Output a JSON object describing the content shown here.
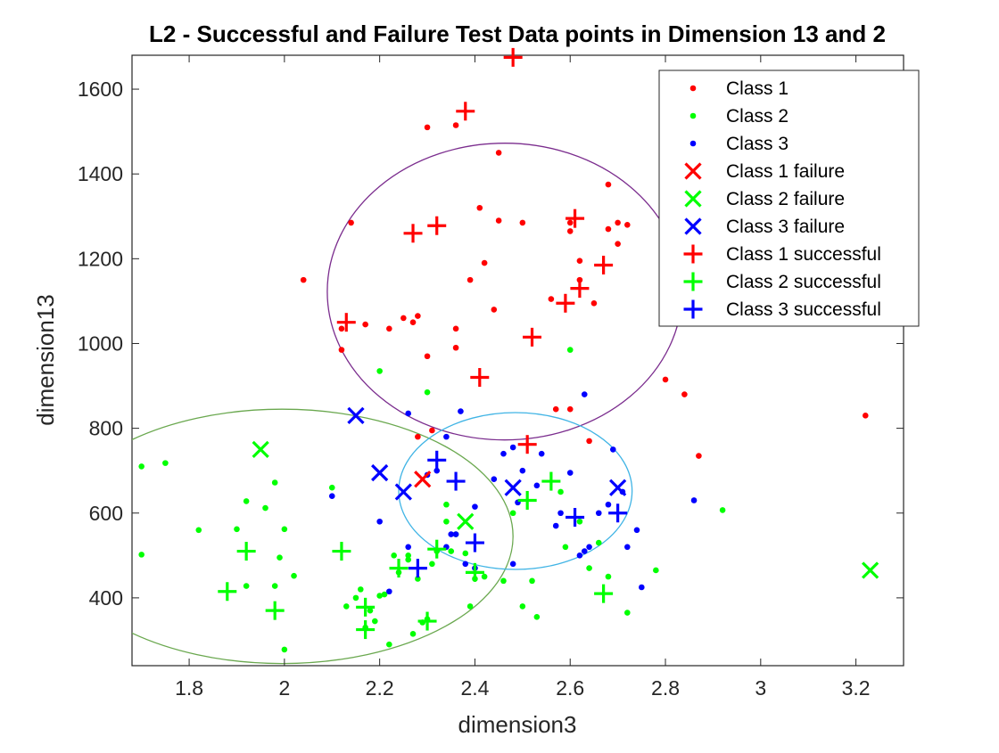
{
  "chart_data": {
    "type": "scatter",
    "title": "L2 - Successful and Failure Test Data points in Dimension 13 and 2",
    "xlabel": "dimension3",
    "ylabel": "dimension13",
    "xlim": [
      1.68,
      3.3
    ],
    "ylim": [
      240,
      1680
    ],
    "xticks": [
      1.8,
      2,
      2.2,
      2.4,
      2.6,
      2.8,
      3,
      3.2
    ],
    "xtick_labels": [
      "1.8",
      "2",
      "2.2",
      "2.4",
      "2.6",
      "2.8",
      "3",
      "3.2"
    ],
    "yticks": [
      400,
      600,
      800,
      1000,
      1200,
      1400,
      1600
    ],
    "ytick_labels": [
      "400",
      "600",
      "800",
      "1000",
      "1200",
      "1400",
      "1600"
    ],
    "grid": false,
    "legend_position": "top-right",
    "colors": {
      "class1": "#ff0000",
      "class2": "#00ff00",
      "class3": "#0000ff"
    },
    "series": [
      {
        "name": "Class 1",
        "marker": "dot",
        "color": "#ff0000",
        "points": [
          [
            2.3,
            1510
          ],
          [
            2.36,
            1515
          ],
          [
            2.45,
            1450
          ],
          [
            2.04,
            1150
          ],
          [
            2.14,
            1285
          ],
          [
            2.12,
            985
          ],
          [
            2.12,
            1035
          ],
          [
            2.17,
            1045
          ],
          [
            2.22,
            1035
          ],
          [
            2.25,
            1060
          ],
          [
            2.27,
            1050
          ],
          [
            2.28,
            1065
          ],
          [
            2.3,
            970
          ],
          [
            2.36,
            1035
          ],
          [
            2.36,
            990
          ],
          [
            2.39,
            1150
          ],
          [
            2.41,
            1320
          ],
          [
            2.42,
            1190
          ],
          [
            2.44,
            1080
          ],
          [
            2.45,
            1290
          ],
          [
            2.5,
            1285
          ],
          [
            2.56,
            1105
          ],
          [
            2.6,
            1285
          ],
          [
            2.6,
            1265
          ],
          [
            2.62,
            1195
          ],
          [
            2.62,
            1150
          ],
          [
            2.65,
            1095
          ],
          [
            2.68,
            1375
          ],
          [
            2.68,
            1270
          ],
          [
            2.7,
            1285
          ],
          [
            2.7,
            1235
          ],
          [
            2.72,
            1280
          ],
          [
            2.8,
            915
          ],
          [
            2.84,
            880
          ],
          [
            2.87,
            735
          ],
          [
            3.22,
            830
          ],
          [
            2.31,
            795
          ],
          [
            2.28,
            780
          ],
          [
            2.57,
            845
          ],
          [
            2.6,
            845
          ],
          [
            2.64,
            770
          ]
        ]
      },
      {
        "name": "Class 2",
        "marker": "dot",
        "color": "#00ff00",
        "points": [
          [
            1.7,
            710
          ],
          [
            1.75,
            718
          ],
          [
            1.7,
            502
          ],
          [
            1.82,
            560
          ],
          [
            1.9,
            562
          ],
          [
            1.92,
            628
          ],
          [
            1.92,
            428
          ],
          [
            1.96,
            612
          ],
          [
            1.98,
            672
          ],
          [
            1.98,
            428
          ],
          [
            1.99,
            495
          ],
          [
            2.0,
            562
          ],
          [
            2.02,
            452
          ],
          [
            2.0,
            278
          ],
          [
            2.1,
            660
          ],
          [
            2.13,
            380
          ],
          [
            2.15,
            400
          ],
          [
            2.16,
            420
          ],
          [
            2.17,
            330
          ],
          [
            2.18,
            370
          ],
          [
            2.19,
            345
          ],
          [
            2.2,
            405
          ],
          [
            2.21,
            408
          ],
          [
            2.22,
            290
          ],
          [
            2.23,
            500
          ],
          [
            2.24,
            460
          ],
          [
            2.26,
            490
          ],
          [
            2.26,
            500
          ],
          [
            2.27,
            315
          ],
          [
            2.28,
            445
          ],
          [
            2.29,
            342
          ],
          [
            2.3,
            350
          ],
          [
            2.31,
            480
          ],
          [
            2.32,
            510
          ],
          [
            2.34,
            580
          ],
          [
            2.35,
            510
          ],
          [
            2.36,
            550
          ],
          [
            2.38,
            505
          ],
          [
            2.39,
            380
          ],
          [
            2.4,
            445
          ],
          [
            2.42,
            450
          ],
          [
            2.46,
            440
          ],
          [
            2.5,
            380
          ],
          [
            2.52,
            440
          ],
          [
            2.53,
            355
          ],
          [
            2.59,
            520
          ],
          [
            2.6,
            985
          ],
          [
            2.62,
            580
          ],
          [
            2.64,
            470
          ],
          [
            2.68,
            450
          ],
          [
            2.72,
            365
          ],
          [
            2.78,
            465
          ],
          [
            2.92,
            607
          ],
          [
            2.2,
            935
          ],
          [
            2.3,
            885
          ],
          [
            2.48,
            600
          ],
          [
            2.58,
            650
          ],
          [
            2.66,
            530
          ],
          [
            2.34,
            620
          ]
        ]
      },
      {
        "name": "Class 3",
        "marker": "dot",
        "color": "#0000ff",
        "points": [
          [
            2.1,
            640
          ],
          [
            2.2,
            580
          ],
          [
            2.22,
            415
          ],
          [
            2.26,
            835
          ],
          [
            2.26,
            520
          ],
          [
            2.3,
            690
          ],
          [
            2.32,
            700
          ],
          [
            2.34,
            780
          ],
          [
            2.35,
            550
          ],
          [
            2.36,
            550
          ],
          [
            2.37,
            840
          ],
          [
            2.38,
            480
          ],
          [
            2.4,
            470
          ],
          [
            2.4,
            615
          ],
          [
            2.44,
            680
          ],
          [
            2.46,
            740
          ],
          [
            2.48,
            480
          ],
          [
            2.49,
            625
          ],
          [
            2.5,
            700
          ],
          [
            2.53,
            665
          ],
          [
            2.54,
            740
          ],
          [
            2.57,
            570
          ],
          [
            2.58,
            600
          ],
          [
            2.6,
            695
          ],
          [
            2.62,
            500
          ],
          [
            2.63,
            880
          ],
          [
            2.63,
            510
          ],
          [
            2.64,
            520
          ],
          [
            2.66,
            600
          ],
          [
            2.68,
            620
          ],
          [
            2.69,
            750
          ],
          [
            2.71,
            650
          ],
          [
            2.72,
            520
          ],
          [
            2.74,
            560
          ],
          [
            2.75,
            425
          ],
          [
            2.86,
            630
          ],
          [
            2.48,
            755
          ],
          [
            2.34,
            520
          ]
        ]
      },
      {
        "name": "Class 1 failure",
        "marker": "x",
        "color": "#ff0000",
        "points": [
          [
            2.29,
            680
          ]
        ]
      },
      {
        "name": "Class 2 failure",
        "marker": "x",
        "color": "#00ff00",
        "points": [
          [
            1.95,
            750
          ],
          [
            2.38,
            580
          ],
          [
            3.23,
            465
          ]
        ]
      },
      {
        "name": "Class 3 failure",
        "marker": "x",
        "color": "#0000ff",
        "points": [
          [
            2.15,
            830
          ],
          [
            2.2,
            695
          ],
          [
            2.25,
            650
          ],
          [
            2.48,
            660
          ],
          [
            2.7,
            660
          ]
        ]
      },
      {
        "name": "Class 1 successful",
        "marker": "plus",
        "color": "#ff0000",
        "points": [
          [
            2.48,
            1675
          ],
          [
            2.38,
            1548
          ],
          [
            2.27,
            1260
          ],
          [
            2.32,
            1278
          ],
          [
            2.13,
            1050
          ],
          [
            2.41,
            920
          ],
          [
            2.52,
            1015
          ],
          [
            2.59,
            1095
          ],
          [
            2.62,
            1130
          ],
          [
            2.67,
            1185
          ],
          [
            2.61,
            1295
          ],
          [
            2.51,
            762
          ]
        ]
      },
      {
        "name": "Class 2 successful",
        "marker": "plus",
        "color": "#00ff00",
        "points": [
          [
            1.88,
            415
          ],
          [
            1.92,
            510
          ],
          [
            1.98,
            370
          ],
          [
            2.12,
            510
          ],
          [
            2.17,
            378
          ],
          [
            2.17,
            325
          ],
          [
            2.24,
            470
          ],
          [
            2.3,
            345
          ],
          [
            2.32,
            515
          ],
          [
            2.4,
            460
          ],
          [
            2.51,
            630
          ],
          [
            2.56,
            675
          ],
          [
            2.67,
            410
          ]
        ]
      },
      {
        "name": "Class 3 successful",
        "marker": "plus",
        "color": "#0000ff",
        "points": [
          [
            2.28,
            470
          ],
          [
            2.32,
            725
          ],
          [
            2.36,
            675
          ],
          [
            2.4,
            530
          ],
          [
            2.61,
            590
          ],
          [
            2.7,
            600
          ]
        ]
      }
    ],
    "ellipses": [
      {
        "cx": 2.4625,
        "cy": 1122.5,
        "rx": 0.3725,
        "ry": 350,
        "color": "#7b2d8e"
      },
      {
        "cx": 1.995,
        "cy": 545,
        "rx": 0.485,
        "ry": 300,
        "color": "#6aa84f"
      },
      {
        "cx": 2.485,
        "cy": 652,
        "rx": 0.245,
        "ry": 185,
        "color": "#40b4e5"
      }
    ]
  }
}
